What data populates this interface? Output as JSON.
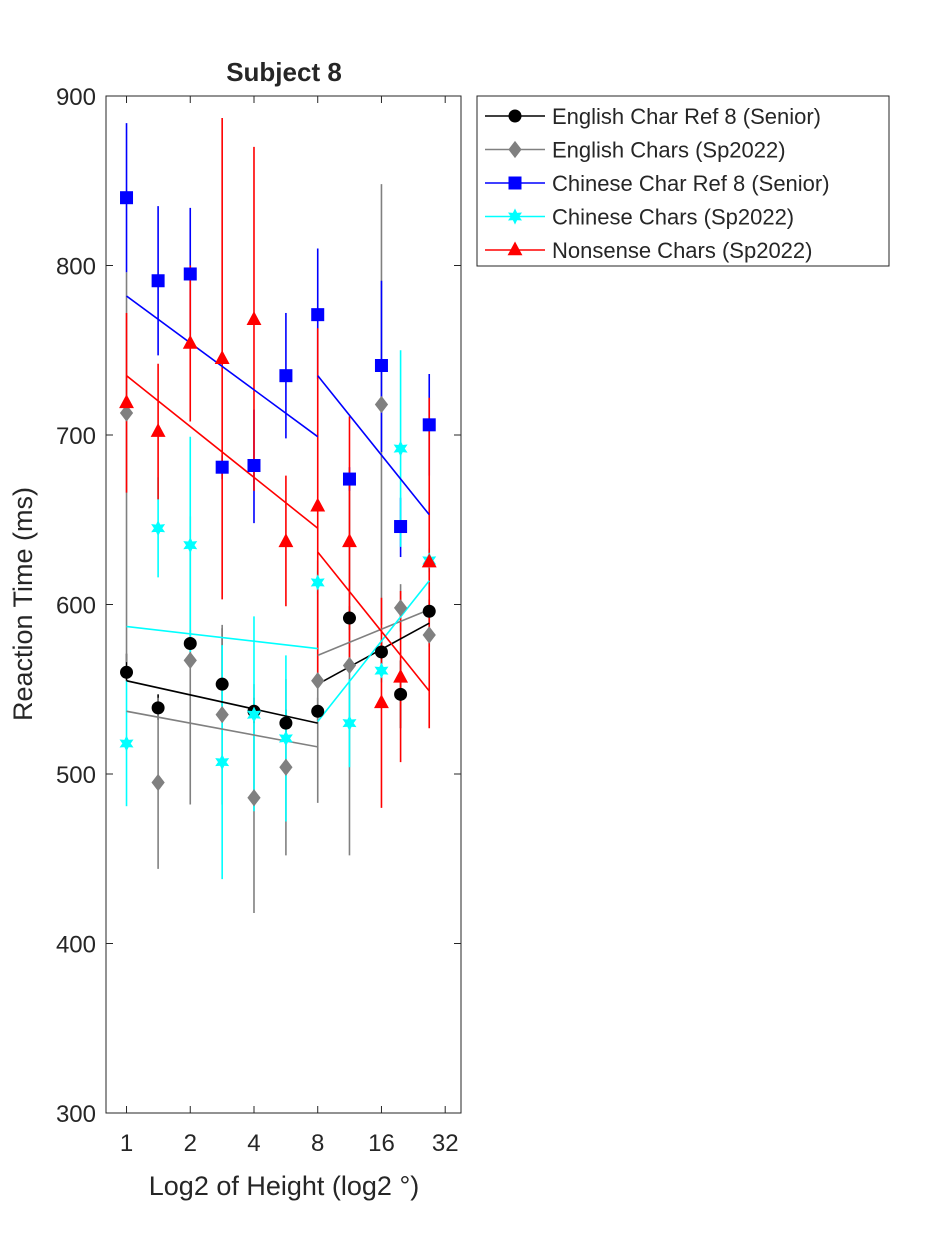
{
  "chart_data": {
    "type": "scatter",
    "title": "Subject 8",
    "xlabel": "Log2 of Height (log2 °)",
    "ylabel": "Reaction Time (ms)",
    "x_scale": "log2",
    "xlim": [
      0.8,
      38
    ],
    "ylim": [
      300,
      900
    ],
    "xticks": [
      1,
      2,
      4,
      8,
      16,
      32
    ],
    "xtick_labels": [
      "1",
      "2",
      "4",
      "8",
      "16",
      "32"
    ],
    "yticks": [
      300,
      400,
      500,
      600,
      700,
      800,
      900
    ],
    "ytick_labels": [
      "300",
      "400",
      "500",
      "600",
      "700",
      "800",
      "900"
    ],
    "grid": false,
    "legend_position": "outside-right-top",
    "series": [
      {
        "name": "English Char Ref 8 (Senior)",
        "color": "#000000",
        "marker": "circle",
        "points": [
          {
            "x": 1,
            "y": 560,
            "lo": 555,
            "hi": 571
          },
          {
            "x": 1.41,
            "y": 539,
            "lo": 532,
            "hi": 547
          },
          {
            "x": 2,
            "y": 577,
            "lo": 570,
            "hi": 585
          },
          {
            "x": 2.83,
            "y": 553,
            "lo": 540,
            "hi": 586
          },
          {
            "x": 4,
            "y": 537,
            "lo": 530,
            "hi": 545
          },
          {
            "x": 5.66,
            "y": 530,
            "lo": 523,
            "hi": 538
          },
          {
            "x": 8,
            "y": 537,
            "lo": 530,
            "hi": 545
          },
          {
            "x": 11.3,
            "y": 592,
            "lo": 585,
            "hi": 599
          },
          {
            "x": 16,
            "y": 572,
            "lo": 565,
            "hi": 579
          },
          {
            "x": 19.7,
            "y": 547,
            "lo": 527,
            "hi": 567
          },
          {
            "x": 26.9,
            "y": 596,
            "lo": 589,
            "hi": 603
          }
        ],
        "fits": [
          {
            "x": [
              1,
              8
            ],
            "y": [
              555,
              530
            ]
          },
          {
            "x": [
              8,
              26.9
            ],
            "y": [
              553,
              589
            ]
          }
        ]
      },
      {
        "name": "English Chars (Sp2022)",
        "color": "#808080",
        "marker": "diamond",
        "points": [
          {
            "x": 1,
            "y": 713,
            "lo": 566,
            "hi": 796
          },
          {
            "x": 1.41,
            "y": 495,
            "lo": 444,
            "hi": 545
          },
          {
            "x": 2,
            "y": 567,
            "lo": 482,
            "hi": 652
          },
          {
            "x": 2.83,
            "y": 535,
            "lo": 482,
            "hi": 588
          },
          {
            "x": 4,
            "y": 486,
            "lo": 418,
            "hi": 553
          },
          {
            "x": 5.66,
            "y": 504,
            "lo": 452,
            "hi": 556
          },
          {
            "x": 8,
            "y": 555,
            "lo": 483,
            "hi": 626
          },
          {
            "x": 11.3,
            "y": 564,
            "lo": 452,
            "hi": 676
          },
          {
            "x": 16,
            "y": 718,
            "lo": 588,
            "hi": 848
          },
          {
            "x": 19.7,
            "y": 598,
            "lo": 584,
            "hi": 612
          },
          {
            "x": 26.9,
            "y": 582,
            "lo": 575,
            "hi": 589
          }
        ],
        "fits": [
          {
            "x": [
              1,
              8
            ],
            "y": [
              537,
              516
            ]
          },
          {
            "x": [
              8,
              26.9
            ],
            "y": [
              570,
              597
            ]
          }
        ]
      },
      {
        "name": "Chinese Char Ref 8 (Senior)",
        "color": "#0000ff",
        "marker": "square",
        "points": [
          {
            "x": 1,
            "y": 840,
            "lo": 796,
            "hi": 884
          },
          {
            "x": 1.41,
            "y": 791,
            "lo": 747,
            "hi": 835
          },
          {
            "x": 2,
            "y": 795,
            "lo": 756,
            "hi": 834
          },
          {
            "x": 2.83,
            "y": 681,
            "lo": 674,
            "hi": 688
          },
          {
            "x": 4,
            "y": 682,
            "lo": 648,
            "hi": 715
          },
          {
            "x": 5.66,
            "y": 735,
            "lo": 698,
            "hi": 772
          },
          {
            "x": 8,
            "y": 771,
            "lo": 733,
            "hi": 810
          },
          {
            "x": 11.3,
            "y": 674,
            "lo": 667,
            "hi": 681
          },
          {
            "x": 16,
            "y": 741,
            "lo": 690,
            "hi": 791
          },
          {
            "x": 19.7,
            "y": 646,
            "lo": 628,
            "hi": 663
          },
          {
            "x": 26.9,
            "y": 706,
            "lo": 676,
            "hi": 736
          }
        ],
        "fits": [
          {
            "x": [
              1,
              8
            ],
            "y": [
              782,
              699
            ]
          },
          {
            "x": [
              8,
              26.9
            ],
            "y": [
              735,
              653
            ]
          }
        ]
      },
      {
        "name": "Chinese Chars (Sp2022)",
        "color": "#00ffff",
        "marker": "hexagram",
        "points": [
          {
            "x": 1,
            "y": 518,
            "lo": 481,
            "hi": 555
          },
          {
            "x": 1.41,
            "y": 645,
            "lo": 616,
            "hi": 675
          },
          {
            "x": 2,
            "y": 635,
            "lo": 572,
            "hi": 699
          },
          {
            "x": 2.83,
            "y": 507,
            "lo": 438,
            "hi": 576
          },
          {
            "x": 4,
            "y": 535,
            "lo": 478,
            "hi": 593
          },
          {
            "x": 5.66,
            "y": 521,
            "lo": 472,
            "hi": 570
          },
          {
            "x": 8,
            "y": 613,
            "lo": 606,
            "hi": 620
          },
          {
            "x": 11.3,
            "y": 530,
            "lo": 504,
            "hi": 556
          },
          {
            "x": 16,
            "y": 561,
            "lo": 554,
            "hi": 568
          },
          {
            "x": 19.7,
            "y": 692,
            "lo": 634,
            "hi": 750
          },
          {
            "x": 26.9,
            "y": 626,
            "lo": 619,
            "hi": 633
          }
        ],
        "fits": [
          {
            "x": [
              1,
              8
            ],
            "y": [
              587,
              574
            ]
          },
          {
            "x": [
              8,
              26.9
            ],
            "y": [
              531,
              614
            ]
          }
        ]
      },
      {
        "name": "Nonsense Chars (Sp2022)",
        "color": "#ff0000",
        "marker": "triangle",
        "points": [
          {
            "x": 1,
            "y": 719,
            "lo": 666,
            "hi": 772
          },
          {
            "x": 1.41,
            "y": 702,
            "lo": 662,
            "hi": 742
          },
          {
            "x": 2,
            "y": 754,
            "lo": 708,
            "hi": 800
          },
          {
            "x": 2.83,
            "y": 745,
            "lo": 603,
            "hi": 887
          },
          {
            "x": 4,
            "y": 768,
            "lo": 667,
            "hi": 870
          },
          {
            "x": 5.66,
            "y": 637,
            "lo": 599,
            "hi": 676
          },
          {
            "x": 8,
            "y": 658,
            "lo": 554,
            "hi": 763
          },
          {
            "x": 11.3,
            "y": 637,
            "lo": 563,
            "hi": 711
          },
          {
            "x": 16,
            "y": 542,
            "lo": 480,
            "hi": 604
          },
          {
            "x": 19.7,
            "y": 557,
            "lo": 507,
            "hi": 608
          },
          {
            "x": 26.9,
            "y": 625,
            "lo": 527,
            "hi": 722
          }
        ],
        "fits": [
          {
            "x": [
              1,
              8
            ],
            "y": [
              735,
              645
            ]
          },
          {
            "x": [
              8,
              26.9
            ],
            "y": [
              631,
              549
            ]
          }
        ]
      }
    ]
  }
}
